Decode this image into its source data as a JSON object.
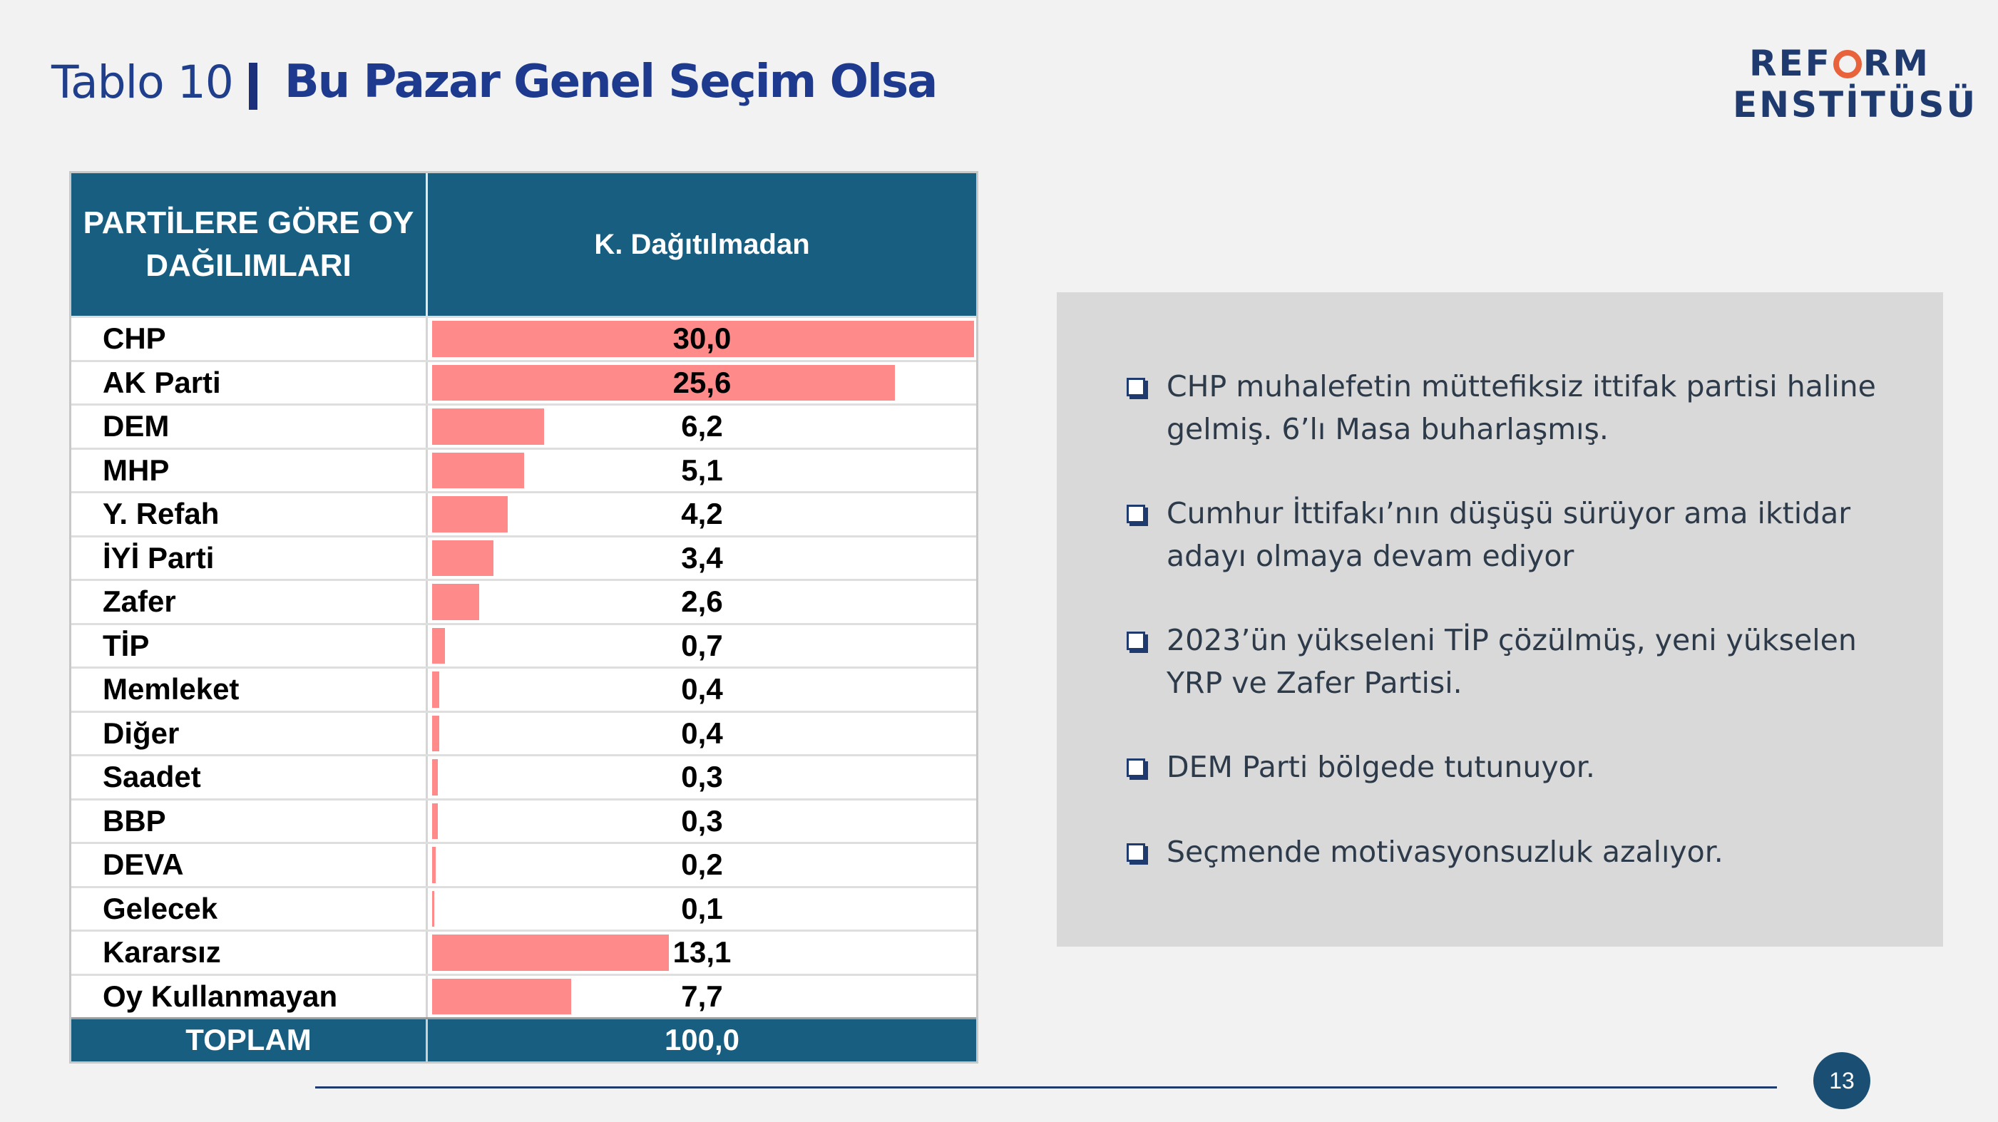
{
  "header": {
    "prefix": "Tablo 10",
    "title": "Bu Pazar Genel Seçim Olsa"
  },
  "logo": {
    "line1_a": "REF",
    "line1_b": "RM",
    "line2": "ENSTİTÜSÜ",
    "ring_color": "#e8623c"
  },
  "chart_data": {
    "type": "table",
    "columns": [
      "PARTİLERE GÖRE OY DAĞILIMLARI",
      "K. Dağıtılmadan"
    ],
    "rows": [
      {
        "party": "CHP",
        "value": 30.0,
        "label": "30,0"
      },
      {
        "party": "AK Parti",
        "value": 25.6,
        "label": "25,6"
      },
      {
        "party": "DEM",
        "value": 6.2,
        "label": "6,2"
      },
      {
        "party": "MHP",
        "value": 5.1,
        "label": "5,1"
      },
      {
        "party": "Y. Refah",
        "value": 4.2,
        "label": "4,2"
      },
      {
        "party": "İYİ Parti",
        "value": 3.4,
        "label": "3,4"
      },
      {
        "party": "Zafer",
        "value": 2.6,
        "label": "2,6"
      },
      {
        "party": "TİP",
        "value": 0.7,
        "label": "0,7"
      },
      {
        "party": "Memleket",
        "value": 0.4,
        "label": "0,4"
      },
      {
        "party": "Diğer",
        "value": 0.4,
        "label": "0,4"
      },
      {
        "party": "Saadet",
        "value": 0.3,
        "label": "0,3"
      },
      {
        "party": "BBP",
        "value": 0.3,
        "label": "0,3"
      },
      {
        "party": "DEVA",
        "value": 0.2,
        "label": "0,2"
      },
      {
        "party": "Gelecek",
        "value": 0.1,
        "label": "0,1"
      },
      {
        "party": "Kararsız",
        "value": 13.1,
        "label": "13,1"
      },
      {
        "party": "Oy Kullanmayan",
        "value": 7.7,
        "label": "7,7"
      }
    ],
    "total": {
      "label": "TOPLAM",
      "value": "100,0"
    },
    "bar_max": 30.0,
    "bar_color": "#ff8a8a",
    "header_color": "#175e81"
  },
  "notes": [
    "CHP muhalefetin müttefiksiz ittifak partisi haline gelmiş. 6’lı Masa buharlaşmış.",
    "Cumhur İttifakı’nın düşüşü sürüyor ama iktidar adayı olmaya devam ediyor",
    "2023’ün yükseleni TİP çözülmüş, yeni yükselen YRP ve Zafer Partisi.",
    "DEM Parti bölgede tutunuyor.",
    "Seçmende motivasyonsuzluk azalıyor."
  ],
  "footer": {
    "page_number": "13"
  }
}
